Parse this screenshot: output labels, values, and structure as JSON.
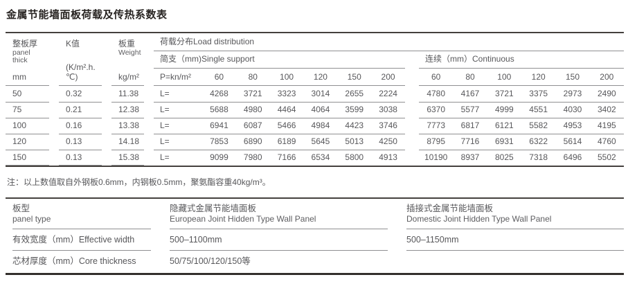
{
  "title": "金属节能墙面板荷载及传热系数表",
  "main_table": {
    "columns": {
      "thick_zh": "整板厚",
      "thick_en1": "panel",
      "thick_en2": "thick",
      "thick_unit": "mm",
      "k_zh": "K值",
      "k_unit": "(K/m².h.℃)",
      "weight_zh": "板重",
      "weight_en": "Weight",
      "weight_unit": "kg/m²"
    },
    "load": {
      "title": "荷载分布Load distribution",
      "simple_title": "简支（mm)Single support",
      "continuous_title": "连续（mm）Continuous",
      "p_label": "P=kn/m²",
      "l_label": "L=",
      "spans": [
        "60",
        "80",
        "100",
        "120",
        "150",
        "200"
      ]
    },
    "rows": [
      {
        "thick": "50",
        "k": "0.32",
        "weight": "11.38",
        "simple": [
          "4268",
          "3721",
          "3323",
          "3014",
          "2655",
          "2224"
        ],
        "continuous": [
          "4780",
          "4167",
          "3721",
          "3375",
          "2973",
          "2490"
        ]
      },
      {
        "thick": "75",
        "k": "0.21",
        "weight": "12.38",
        "simple": [
          "5688",
          "4980",
          "4464",
          "4064",
          "3599",
          "3038"
        ],
        "continuous": [
          "6370",
          "5577",
          "4999",
          "4551",
          "4030",
          "3402"
        ]
      },
      {
        "thick": "100",
        "k": "0.16",
        "weight": "13.38",
        "simple": [
          "6941",
          "6087",
          "5466",
          "4984",
          "4423",
          "3746"
        ],
        "continuous": [
          "7773",
          "6817",
          "6121",
          "5582",
          "4953",
          "4195"
        ]
      },
      {
        "thick": "120",
        "k": "0.13",
        "weight": "14.18",
        "simple": [
          "7853",
          "6890",
          "6189",
          "5645",
          "5013",
          "4250"
        ],
        "continuous": [
          "8795",
          "7716",
          "6931",
          "6322",
          "5614",
          "4760"
        ]
      },
      {
        "thick": "150",
        "k": "0.13",
        "weight": "15.38",
        "simple": [
          "9099",
          "7980",
          "7166",
          "6534",
          "5800",
          "4913"
        ],
        "continuous": [
          "10190",
          "8937",
          "8025",
          "7318",
          "6496",
          "5502"
        ]
      }
    ],
    "note": "注：以上数值取自外钢板0.6mm，内钢板0.5mm，聚氨酯容重40kg/m³。"
  },
  "spec_table": {
    "header_row": {
      "label_zh": "板型",
      "label_en": "panel type",
      "hidden_zh": "隐藏式金属节能墙面板",
      "hidden_en": "European Joint Hidden Type Wall Panel",
      "plug_zh": "插接式金属节能墙面板",
      "plug_en": "Domestic Joint Hidden Type Wall Panel"
    },
    "width_row": {
      "label": "有效宽度（mm）Effective width",
      "hidden": "500–1100mm",
      "plug": "500–1150mm"
    },
    "core_row": {
      "label": "芯材厚度（mm）Core thickness",
      "hidden": "50/75/100/120/150等",
      "plug": ""
    }
  }
}
